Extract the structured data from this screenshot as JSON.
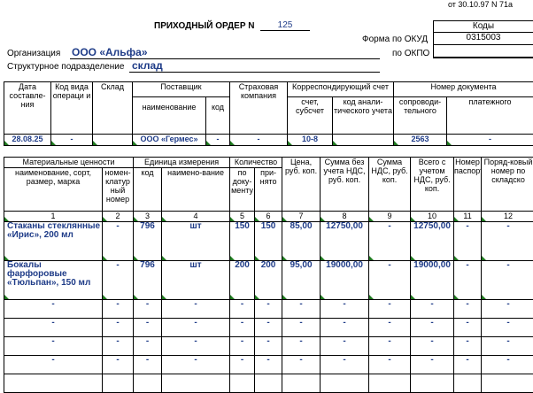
{
  "header": {
    "top_ref": "от 30.10.97 N 71а",
    "title": "ПРИХОДНЫЙ ОРДЕР N",
    "number": "125",
    "codes_label": "Коды",
    "okud_label": "Форма по ОКУД",
    "okud_value": "0315003",
    "okpo_label": "по ОКПО",
    "okpo_value": "",
    "org_label": "Организация",
    "org_value": "ООО «Альфа»",
    "dept_label": "Структурное подразделение",
    "dept_value": "склад"
  },
  "doc_table": {
    "headers": {
      "date": "Дата составле-ния",
      "op_code": "Код вида операци и",
      "warehouse": "Склад",
      "supplier": "Поставщик",
      "supplier_name": "наименование",
      "supplier_code": "код",
      "insurer": "Страховая компания",
      "corr": "Корреспондирующий счет",
      "corr_account": "счет, субсчет",
      "corr_analytic": "код анали-тического учета",
      "docnum": "Номер документа",
      "docnum_accomp": "сопроводи-тельного",
      "docnum_payment": "платежного"
    },
    "values": {
      "date": "28.08.25",
      "op_code": "-",
      "warehouse": "",
      "supplier_name": "ООО «Гермес»",
      "supplier_code": "-",
      "insurer": "-",
      "corr_account": "10-8",
      "corr_analytic": "",
      "docnum_accomp": "2563",
      "docnum_payment": "-"
    }
  },
  "items_table": {
    "headers": {
      "materials": "Материальные ценности",
      "mat_name": "наименование, сорт, размер, марка",
      "mat_num": "номен-клатур ный номер",
      "unit": "Единица измерения",
      "unit_code": "код",
      "unit_name": "наимено-вание",
      "qty": "Количество",
      "qty_doc": "по доку-менту",
      "qty_acc": "при-нято",
      "price": "Цена, руб. коп.",
      "sum_novat": "Сумма без учета НДС, руб. коп.",
      "vat": "Сумма НДС, руб. коп.",
      "total": "Всего с учетом НДС, руб. коп.",
      "passport": "Номер паспорта",
      "order_no": "Поряд-ковый номер по складско"
    },
    "col_numbers": [
      "1",
      "2",
      "3",
      "4",
      "5",
      "6",
      "7",
      "8",
      "9",
      "10",
      "11",
      "12"
    ],
    "rows": [
      {
        "name": "Стаканы стеклянные «Ирис», 200 мл",
        "num": "-",
        "code": "796",
        "unit": "шт",
        "qty_doc": "150",
        "qty_acc": "150",
        "price": "85,00",
        "sum": "12750,00",
        "vat": "-",
        "total": "12750,00",
        "passport": "-",
        "order": "-"
      },
      {
        "name": "Бокалы фарфоровые «Тюльпан», 150 мл",
        "num": "-",
        "code": "796",
        "unit": "шт",
        "qty_doc": "200",
        "qty_acc": "200",
        "price": "95,00",
        "sum": "19000,00",
        "vat": "-",
        "total": "19000,00",
        "passport": "-",
        "order": "-"
      },
      {
        "name": "-",
        "num": "-",
        "code": "-",
        "unit": "-",
        "qty_doc": "-",
        "qty_acc": "-",
        "price": "-",
        "sum": "-",
        "vat": "-",
        "total": "-",
        "passport": "-",
        "order": "-"
      },
      {
        "name": "-",
        "num": "-",
        "code": "-",
        "unit": "-",
        "qty_doc": "-",
        "qty_acc": "-",
        "price": "-",
        "sum": "-",
        "vat": "-",
        "total": "-",
        "passport": "-",
        "order": "-"
      },
      {
        "name": "-",
        "num": "-",
        "code": "-",
        "unit": "-",
        "qty_doc": "-",
        "qty_acc": "-",
        "price": "-",
        "sum": "-",
        "vat": "-",
        "total": "-",
        "passport": "-",
        "order": "-"
      },
      {
        "name": "-",
        "num": "-",
        "code": "-",
        "unit": "-",
        "qty_doc": "-",
        "qty_acc": "-",
        "price": "-",
        "sum": "-",
        "vat": "-",
        "total": "-",
        "passport": "-",
        "order": "-"
      },
      {
        "name": "",
        "num": "",
        "code": "",
        "unit": "",
        "qty_doc": "",
        "qty_acc": "",
        "price": "",
        "sum": "",
        "vat": "",
        "total": "",
        "passport": "",
        "order": ""
      }
    ]
  }
}
